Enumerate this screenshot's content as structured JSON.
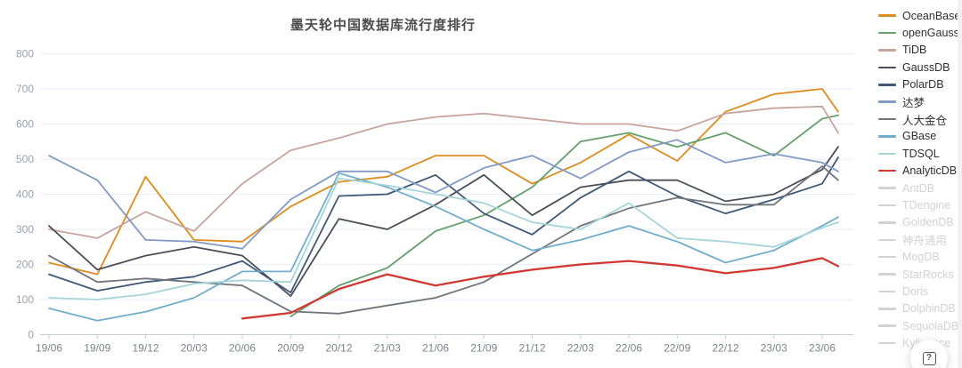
{
  "title": "墨天轮中国数据库流行度排行",
  "help_button": {
    "glyph": "?"
  },
  "legend": {
    "position": "right",
    "disabled_color": "#d2d2d2"
  },
  "chart_data": {
    "type": "line",
    "title": "墨天轮中国数据库流行度排行",
    "xlabel": "",
    "ylabel": "",
    "ylim": [
      0,
      800
    ],
    "y_ticks": [
      0,
      100,
      200,
      300,
      400,
      500,
      600,
      700,
      800
    ],
    "grid": true,
    "x_tick_labels": [
      "19/06",
      "19/09",
      "19/12",
      "20/03",
      "20/06",
      "20/09",
      "20/12",
      "21/03",
      "21/06",
      "21/09",
      "21/12",
      "22/03",
      "22/06",
      "22/09",
      "22/12",
      "23/03",
      "23/06"
    ],
    "x_points": [
      "19/06",
      "19/09",
      "19/12",
      "20/03",
      "20/06",
      "20/09",
      "20/12",
      "21/03",
      "21/06",
      "21/09",
      "21/12",
      "22/03",
      "22/06",
      "22/09",
      "22/12",
      "23/03",
      "23/06",
      "23/07"
    ],
    "series": [
      {
        "name": "OceanBase",
        "color": "#dd8c1e",
        "enabled": true,
        "values": [
          205,
          172,
          450,
          270,
          265,
          365,
          435,
          450,
          510,
          510,
          430,
          490,
          570,
          495,
          635,
          685,
          700,
          635
        ]
      },
      {
        "name": "openGauss",
        "color": "#63a06d",
        "enabled": true,
        "values": [
          null,
          null,
          null,
          null,
          null,
          52,
          140,
          190,
          295,
          340,
          420,
          550,
          575,
          535,
          575,
          510,
          615,
          625
        ]
      },
      {
        "name": "TiDB",
        "color": "#c7a59d",
        "enabled": true,
        "values": [
          300,
          275,
          350,
          295,
          430,
          525,
          560,
          600,
          620,
          630,
          615,
          600,
          600,
          580,
          630,
          645,
          650,
          575
        ]
      },
      {
        "name": "GaussDB",
        "color": "#4a4f58",
        "enabled": true,
        "values": [
          310,
          185,
          225,
          250,
          225,
          110,
          330,
          300,
          370,
          455,
          340,
          420,
          440,
          440,
          380,
          400,
          470,
          535
        ]
      },
      {
        "name": "PolarDB",
        "color": "#3f5877",
        "enabled": true,
        "values": [
          172,
          125,
          150,
          165,
          210,
          120,
          395,
          400,
          455,
          345,
          285,
          390,
          465,
          395,
          345,
          385,
          430,
          505
        ]
      },
      {
        "name": "达梦",
        "color": "#8399c6",
        "enabled": true,
        "values": [
          510,
          440,
          270,
          265,
          245,
          385,
          465,
          465,
          405,
          475,
          510,
          445,
          520,
          555,
          490,
          515,
          490,
          465
        ]
      },
      {
        "name": "人大金仓",
        "color": "#70747b",
        "enabled": true,
        "values": [
          225,
          150,
          160,
          150,
          140,
          66,
          60,
          83,
          105,
          150,
          230,
          310,
          360,
          390,
          370,
          370,
          480,
          440
        ]
      },
      {
        "name": "GBase",
        "color": "#70aecb",
        "enabled": true,
        "values": [
          75,
          40,
          65,
          105,
          180,
          180,
          460,
          420,
          365,
          300,
          240,
          270,
          310,
          265,
          205,
          240,
          310,
          335
        ]
      },
      {
        "name": "TDSQL",
        "color": "#a5d5da",
        "enabled": true,
        "values": [
          105,
          100,
          115,
          145,
          155,
          150,
          445,
          425,
          400,
          375,
          320,
          300,
          375,
          275,
          265,
          250,
          305,
          320
        ]
      },
      {
        "name": "AnalyticDB",
        "color": "#d23831",
        "enabled": true,
        "values": [
          null,
          null,
          null,
          null,
          46,
          62,
          130,
          172,
          140,
          165,
          185,
          200,
          210,
          197,
          175,
          190,
          218,
          195
        ]
      },
      {
        "name": "AntDB",
        "color": "#d2d2d2",
        "enabled": false,
        "values": []
      },
      {
        "name": "TDengine",
        "color": "#d2d2d2",
        "enabled": false,
        "values": []
      },
      {
        "name": "GoldenDB",
        "color": "#d2d2d2",
        "enabled": false,
        "values": []
      },
      {
        "name": "神舟通用",
        "color": "#d2d2d2",
        "enabled": false,
        "values": []
      },
      {
        "name": "MogDB",
        "color": "#d2d2d2",
        "enabled": false,
        "values": []
      },
      {
        "name": "StarRocks",
        "color": "#d2d2d2",
        "enabled": false,
        "values": []
      },
      {
        "name": "Doris",
        "color": "#d2d2d2",
        "enabled": false,
        "values": []
      },
      {
        "name": "DolphinDB",
        "color": "#d2d2d2",
        "enabled": false,
        "values": []
      },
      {
        "name": "SequoiaDB",
        "color": "#d2d2d2",
        "enabled": false,
        "values": []
      },
      {
        "name": "Kyligence",
        "color": "#d2d2d2",
        "enabled": false,
        "values": []
      }
    ],
    "style": {
      "gridline_color": "#e9eef8",
      "axis_color": "#c7cbd2",
      "y_label_color": "#98a0af",
      "x_label_color": "#7c818a",
      "title_color": "#4c4c4c"
    }
  }
}
